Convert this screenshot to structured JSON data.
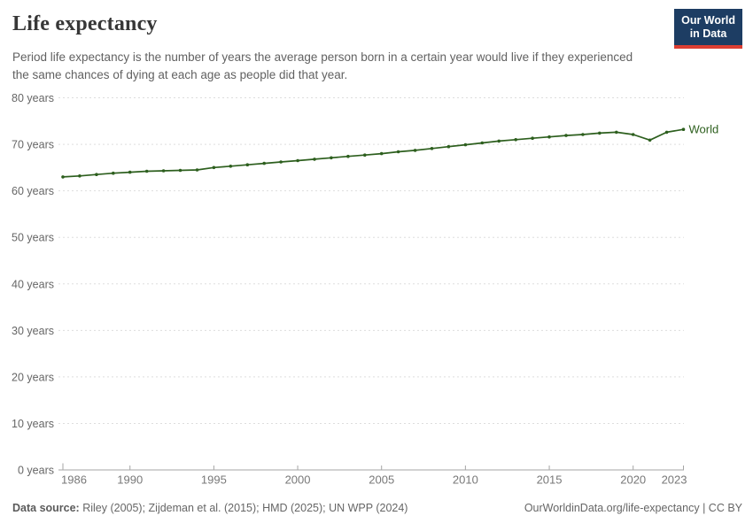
{
  "header": {
    "title": "Life expectancy",
    "subtitle": "Period life expectancy is the number of years the average person born in a certain year would live if they experienced the same chances of dying at each age as people did that year.",
    "logo": {
      "line1": "Our World",
      "line2": "in Data"
    }
  },
  "footer": {
    "source_label": "Data source:",
    "source_text": " Riley (2005); Zijdeman et al. (2015); HMD (2025); UN WPP (2024)",
    "link_text": "OurWorldinData.org/life-expectancy",
    "license_text": " | CC BY"
  },
  "colors": {
    "line": "#2d5f1e",
    "title": "#373737",
    "subtitle": "#616161",
    "grid": "#dddddd",
    "axis": "#a5a5a5",
    "y_tick_label": "#666666",
    "x_tick_label": "#787878",
    "logo_bg": "#1d3d63",
    "logo_stripe": "#dc3e32"
  },
  "chart_data": {
    "type": "line",
    "title": "Life expectancy",
    "xlabel": "",
    "ylabel": "",
    "xlim": [
      1986,
      2023
    ],
    "ylim": [
      0,
      80
    ],
    "x_ticks": [
      1986,
      1990,
      1995,
      2000,
      2005,
      2010,
      2015,
      2020,
      2023
    ],
    "y_ticks": [
      0,
      10,
      20,
      30,
      40,
      50,
      60,
      70,
      80
    ],
    "y_tick_suffix": " years",
    "grid": "horizontal dashed",
    "legend": "inline label at end of line",
    "series": [
      {
        "name": "World",
        "x": [
          1986,
          1987,
          1988,
          1989,
          1990,
          1991,
          1992,
          1993,
          1994,
          1995,
          1996,
          1997,
          1998,
          1999,
          2000,
          2001,
          2002,
          2003,
          2004,
          2005,
          2006,
          2007,
          2008,
          2009,
          2010,
          2011,
          2012,
          2013,
          2014,
          2015,
          2016,
          2017,
          2018,
          2019,
          2020,
          2021,
          2022,
          2023
        ],
        "values": [
          63.0,
          63.2,
          63.5,
          63.8,
          64.0,
          64.2,
          64.3,
          64.4,
          64.5,
          65.0,
          65.3,
          65.6,
          65.9,
          66.2,
          66.5,
          66.8,
          67.1,
          67.4,
          67.7,
          68.0,
          68.4,
          68.7,
          69.1,
          69.5,
          69.9,
          70.3,
          70.7,
          71.0,
          71.3,
          71.6,
          71.9,
          72.1,
          72.4,
          72.6,
          72.1,
          70.9,
          72.6,
          73.2
        ]
      }
    ]
  }
}
